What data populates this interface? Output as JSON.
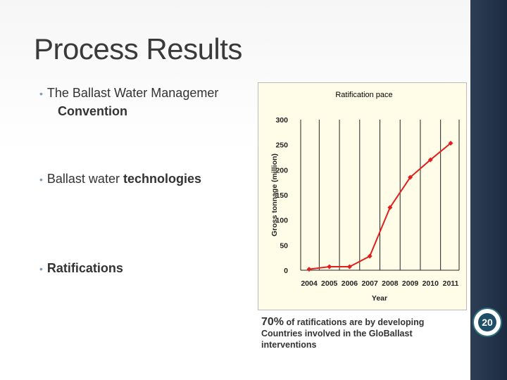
{
  "slide": {
    "title": "Process Results",
    "bullets": [
      {
        "text": "The Ballast Water Managemer",
        "continuation": "Convention"
      },
      {
        "text_plain": "Ballast water ",
        "text_bold": "technologies"
      },
      {
        "text_bold": "Ratifications"
      }
    ],
    "note": {
      "percent": "70%",
      "line1": " of ratifications are by developing",
      "line2": "Countries involved in the GloBallast interventions"
    },
    "seal_text": "20"
  },
  "chart_data": {
    "type": "line",
    "title": "Ratification pace",
    "xlabel": "Year",
    "ylabel": "Gross tonnage (million)",
    "x": [
      "2004",
      "2005",
      "2006",
      "2007",
      "2008",
      "2009",
      "2010",
      "2011"
    ],
    "series": [
      {
        "values": [
          2,
          7,
          7,
          28,
          125,
          185,
          220,
          253
        ]
      }
    ],
    "ylim": [
      0,
      300
    ],
    "yticks": [
      0,
      50,
      100,
      150,
      200,
      250,
      300
    ],
    "grid": "vertical",
    "color": "#e02020"
  }
}
